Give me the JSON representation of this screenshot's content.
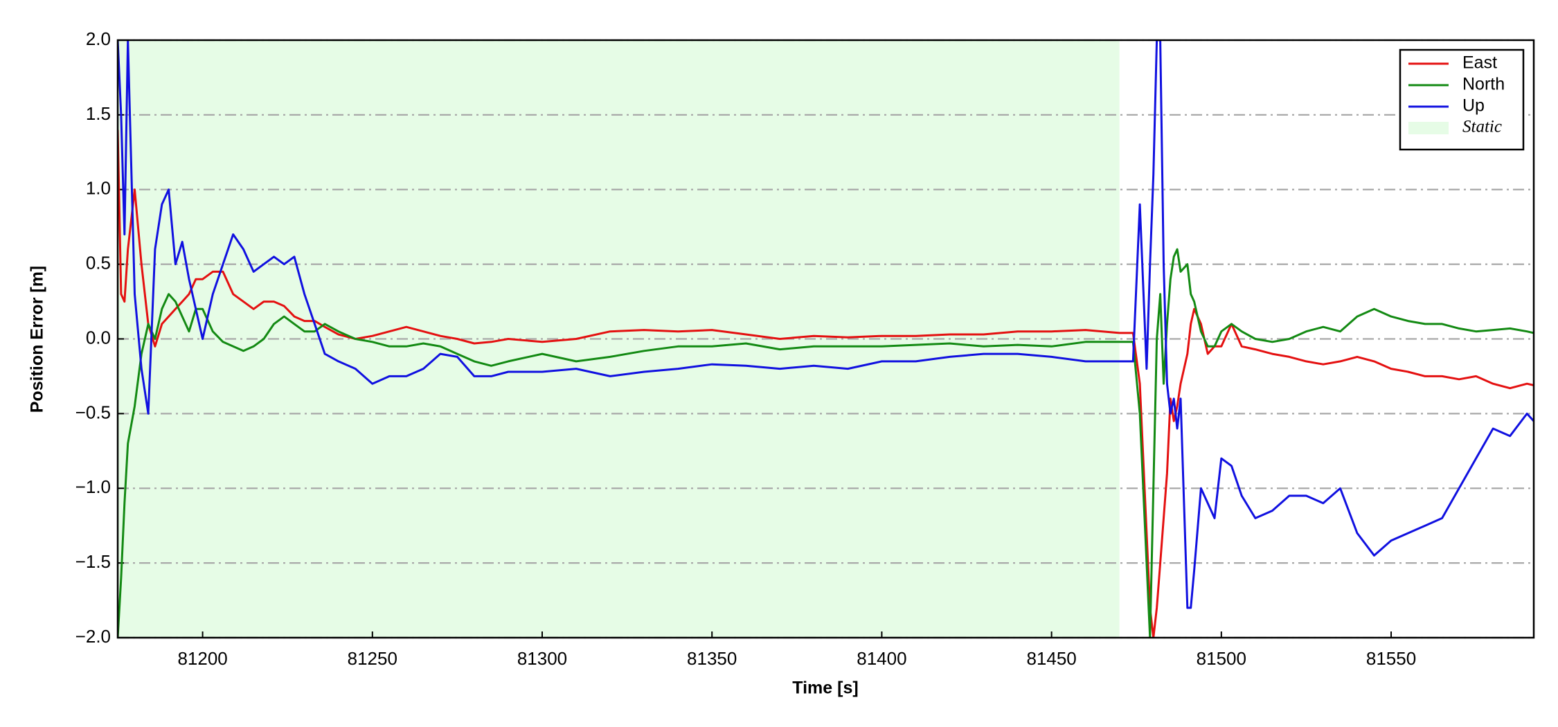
{
  "chart_data": {
    "type": "line",
    "x_label": "Time [s]",
    "y_label": "Position Error [m]",
    "xlim": [
      81175,
      81592
    ],
    "ylim": [
      -2.0,
      2.0
    ],
    "xticks": [
      81200,
      81250,
      81300,
      81350,
      81400,
      81450,
      81500,
      81550
    ],
    "yticks": [
      {
        "value": -2.0,
        "label": "−2.0"
      },
      {
        "value": -1.5,
        "label": "−1.5"
      },
      {
        "value": -1.0,
        "label": "−1.0"
      },
      {
        "value": -0.5,
        "label": "−0.5"
      },
      {
        "value": 0.0,
        "label": "0.0"
      },
      {
        "value": 0.5,
        "label": "0.5"
      },
      {
        "value": 1.0,
        "label": "1.0"
      },
      {
        "value": 1.5,
        "label": "1.5"
      },
      {
        "value": 2.0,
        "label": "2.0"
      }
    ],
    "grid": true,
    "legend": "upper right",
    "static_span": {
      "name": "Static",
      "start": 81175,
      "end": 81470,
      "color": "#e6fce6"
    },
    "x": [
      81175,
      81176,
      81177,
      81178,
      81180,
      81182,
      81184,
      81186,
      81188,
      81190,
      81192,
      81194,
      81196,
      81198,
      81200,
      81203,
      81206,
      81209,
      81212,
      81215,
      81218,
      81221,
      81224,
      81227,
      81230,
      81233,
      81236,
      81240,
      81245,
      81250,
      81255,
      81260,
      81265,
      81270,
      81275,
      81280,
      81285,
      81290,
      81300,
      81310,
      81320,
      81330,
      81340,
      81350,
      81360,
      81370,
      81380,
      81390,
      81400,
      81410,
      81420,
      81430,
      81440,
      81450,
      81460,
      81470,
      81474,
      81476,
      81478,
      81479,
      81480,
      81481,
      81482,
      81483,
      81484,
      81485,
      81486,
      81487,
      81488,
      81490,
      81491,
      81492,
      81494,
      81496,
      81498,
      81500,
      81503,
      81506,
      81510,
      81515,
      81520,
      81525,
      81530,
      81535,
      81540,
      81545,
      81550,
      81555,
      81560,
      81565,
      81570,
      81575,
      81580,
      81585,
      81590,
      81592
    ],
    "series": [
      {
        "name": "East",
        "color": "#e41010",
        "values": [
          1.4,
          0.3,
          0.25,
          0.6,
          1.0,
          0.5,
          0.1,
          -0.05,
          0.1,
          0.15,
          0.2,
          0.25,
          0.3,
          0.4,
          0.4,
          0.45,
          0.45,
          0.3,
          0.25,
          0.2,
          0.25,
          0.25,
          0.22,
          0.15,
          0.12,
          0.12,
          0.08,
          0.03,
          0.0,
          0.02,
          0.05,
          0.08,
          0.05,
          0.02,
          0.0,
          -0.03,
          -0.02,
          0.0,
          -0.02,
          0.0,
          0.05,
          0.06,
          0.05,
          0.06,
          0.03,
          0.0,
          0.02,
          0.01,
          0.02,
          0.02,
          0.03,
          0.03,
          0.05,
          0.05,
          0.06,
          0.04,
          0.04,
          -0.3,
          -1.3,
          -1.8,
          -2.0,
          -1.8,
          -1.5,
          -1.2,
          -0.9,
          -0.4,
          -0.55,
          -0.45,
          -0.3,
          -0.1,
          0.1,
          0.2,
          0.1,
          -0.1,
          -0.05,
          -0.05,
          0.1,
          -0.05,
          -0.07,
          -0.1,
          -0.12,
          -0.15,
          -0.17,
          -0.15,
          -0.12,
          -0.15,
          -0.2,
          -0.22,
          -0.25,
          -0.25,
          -0.27,
          -0.25,
          -0.3,
          -0.33,
          -0.3,
          -0.31
        ]
      },
      {
        "name": "North",
        "color": "#138a13",
        "values": [
          -2.0,
          -1.6,
          -1.1,
          -0.7,
          -0.45,
          -0.1,
          0.1,
          0.0,
          0.2,
          0.3,
          0.25,
          0.15,
          0.05,
          0.2,
          0.2,
          0.05,
          -0.02,
          -0.05,
          -0.08,
          -0.05,
          0.0,
          0.1,
          0.15,
          0.1,
          0.05,
          0.05,
          0.1,
          0.05,
          0.0,
          -0.02,
          -0.05,
          -0.05,
          -0.03,
          -0.05,
          -0.1,
          -0.15,
          -0.18,
          -0.15,
          -0.1,
          -0.15,
          -0.12,
          -0.08,
          -0.05,
          -0.05,
          -0.03,
          -0.07,
          -0.05,
          -0.05,
          -0.05,
          -0.04,
          -0.03,
          -0.05,
          -0.04,
          -0.05,
          -0.02,
          -0.02,
          -0.02,
          -0.5,
          -1.5,
          -2.0,
          -1.0,
          0.0,
          0.3,
          -0.3,
          0.1,
          0.4,
          0.55,
          0.6,
          0.45,
          0.5,
          0.3,
          0.25,
          0.05,
          -0.05,
          -0.05,
          0.05,
          0.1,
          0.05,
          0.0,
          -0.02,
          0.0,
          0.05,
          0.08,
          0.05,
          0.15,
          0.2,
          0.15,
          0.12,
          0.1,
          0.1,
          0.07,
          0.05,
          0.06,
          0.07,
          0.05,
          0.04
        ]
      },
      {
        "name": "Up",
        "color": "#1010e0",
        "values": [
          2.0,
          1.5,
          0.7,
          2.0,
          0.3,
          -0.2,
          -0.5,
          0.6,
          0.9,
          1.0,
          0.5,
          0.65,
          0.4,
          0.2,
          0.0,
          0.3,
          0.5,
          0.7,
          0.6,
          0.45,
          0.5,
          0.55,
          0.5,
          0.55,
          0.3,
          0.1,
          -0.1,
          -0.15,
          -0.2,
          -0.3,
          -0.25,
          -0.25,
          -0.2,
          -0.1,
          -0.12,
          -0.25,
          -0.25,
          -0.22,
          -0.22,
          -0.2,
          -0.25,
          -0.22,
          -0.2,
          -0.17,
          -0.18,
          -0.2,
          -0.18,
          -0.2,
          -0.15,
          -0.15,
          -0.12,
          -0.1,
          -0.1,
          -0.12,
          -0.15,
          -0.15,
          -0.15,
          0.9,
          -0.2,
          0.5,
          1.1,
          2.0,
          2.0,
          0.5,
          -0.3,
          -0.5,
          -0.4,
          -0.6,
          -0.4,
          -1.8,
          -1.8,
          -1.55,
          -1.0,
          -1.1,
          -1.2,
          -0.8,
          -0.85,
          -1.05,
          -1.2,
          -1.15,
          -1.05,
          -1.05,
          -1.1,
          -1.0,
          -1.3,
          -1.45,
          -1.35,
          -1.3,
          -1.25,
          -1.2,
          -1.0,
          -0.8,
          -0.6,
          -0.65,
          -0.5,
          -0.55
        ]
      }
    ]
  }
}
